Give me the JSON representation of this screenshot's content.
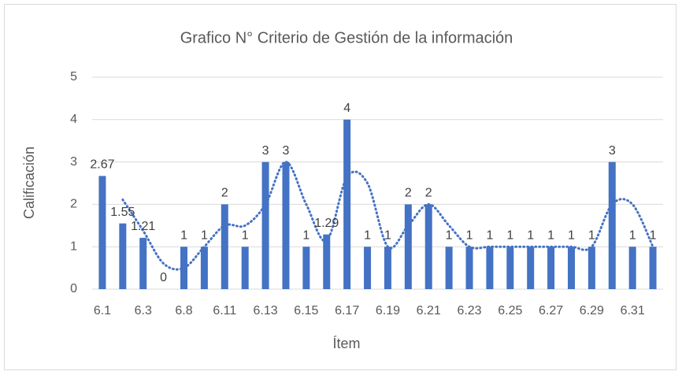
{
  "chart_data": {
    "type": "bar",
    "title": "Grafico N° Criterio de Gestión de la información",
    "x_label": "Ítem",
    "y_label": "Calificación",
    "categories": [
      "6.1",
      null,
      "6.3",
      null,
      "6.8",
      null,
      "6.11",
      null,
      "6.13",
      null,
      "6.15",
      null,
      "6.17",
      null,
      "6.19",
      null,
      "6.21",
      null,
      "6.23",
      null,
      "6.25",
      null,
      "6.27",
      null,
      "6.29",
      null,
      "6.31",
      null
    ],
    "values": [
      2.67,
      1.55,
      1.21,
      0,
      1,
      1,
      2,
      1,
      3,
      3,
      1,
      1.29,
      4,
      1,
      1,
      2,
      2,
      1,
      1,
      1,
      1,
      1,
      1,
      1,
      1,
      3,
      1,
      1
    ],
    "color": "#4472c4",
    "ylim": [
      0,
      5
    ],
    "yticks": [
      0,
      1,
      2,
      3,
      4,
      5
    ],
    "grid": true,
    "trendline": "moving-average",
    "trendline_period": 2
  }
}
